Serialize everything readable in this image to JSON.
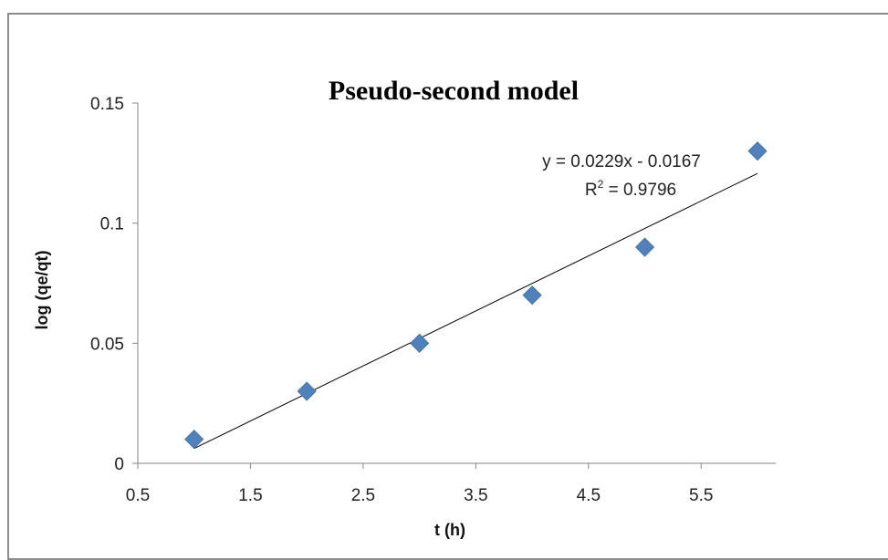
{
  "chart_data": {
    "type": "scatter",
    "title": "Pseudo-second model",
    "xlabel": "t (h)",
    "ylabel": "log (qe/qt)",
    "xlim": [
      0.5,
      6.0
    ],
    "ylim": [
      0,
      0.15
    ],
    "x_ticks": [
      0.5,
      1.5,
      2.5,
      3.5,
      4.5,
      5.5
    ],
    "x_tick_labels": [
      "0.5",
      "1.5",
      "2.5",
      "3.5",
      "4.5",
      "5.5"
    ],
    "y_ticks": [
      0,
      0.05,
      0.1,
      0.15
    ],
    "y_tick_labels": [
      "0",
      "0.05",
      "0.1",
      "0.15"
    ],
    "grid": false,
    "legend": "none",
    "series": [
      {
        "x": [
          1,
          2,
          3,
          4,
          5,
          6
        ],
        "y": [
          0.01,
          0.03,
          0.05,
          0.07,
          0.09,
          0.13
        ],
        "marker": "diamond",
        "color": "#4f81bd"
      }
    ],
    "trendline": {
      "type": "linear",
      "slope": 0.0229,
      "intercept": -0.0167,
      "x_range": [
        1,
        6
      ],
      "color": "#000000",
      "equation": "y = 0.0229x - 0.0167",
      "r2_prefix": "R",
      "r2_sup": "2",
      "r2_value": " = 0.9796"
    }
  }
}
